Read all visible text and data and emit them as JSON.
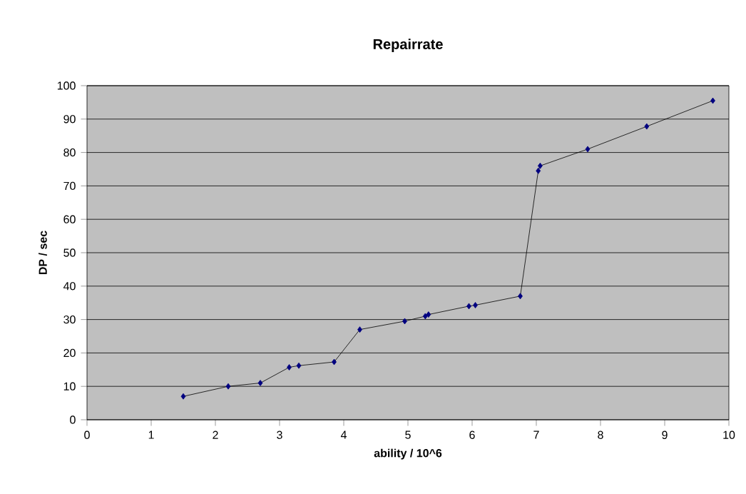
{
  "chart_data": {
    "type": "line",
    "title": "Repairrate",
    "xlabel": "ability / 10^6",
    "ylabel": "DP / sec",
    "x": [
      1.5,
      2.2,
      2.7,
      3.15,
      3.3,
      3.85,
      4.25,
      4.95,
      5.27,
      5.32,
      5.95,
      6.05,
      6.75,
      7.03,
      7.06,
      7.8,
      8.72,
      9.75
    ],
    "series": [
      {
        "color": "#000080",
        "values": [
          7,
          10,
          11,
          15.7,
          16.2,
          17.3,
          27,
          29.5,
          31,
          31.5,
          34,
          34.3,
          37,
          74.5,
          76,
          81,
          87.8,
          95.5
        ]
      }
    ],
    "xlim": [
      0,
      10
    ],
    "xticks": [
      0,
      1,
      2,
      3,
      4,
      5,
      6,
      7,
      8,
      9,
      10
    ],
    "ylim": [
      0,
      100
    ],
    "yticks": [
      0,
      10,
      20,
      30,
      40,
      50,
      60,
      70,
      80,
      90,
      100
    ],
    "grid": "y",
    "marker": "diamond",
    "line_style": "solid"
  }
}
